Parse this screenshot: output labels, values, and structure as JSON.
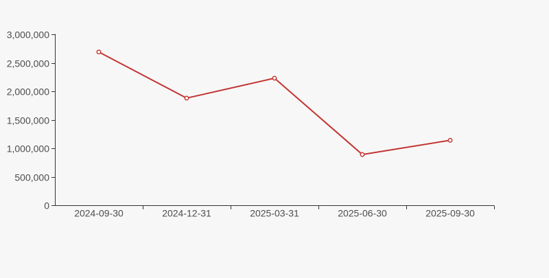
{
  "page": {
    "background_color": "#f7f7f7"
  },
  "chart_data": {
    "type": "line",
    "title": "",
    "xlabel": "",
    "ylabel": "",
    "categories": [
      "2024-09-30",
      "2024-12-31",
      "2025-03-31",
      "2025-06-30",
      "2025-09-30"
    ],
    "series": [
      {
        "name": "series-1",
        "values": [
          2690000,
          1880000,
          2230000,
          890000,
          1140000
        ]
      }
    ],
    "ylim": [
      0,
      3000000
    ],
    "ytick_interval": 500000,
    "ytick_values": [
      0,
      500000,
      1000000,
      1500000,
      2000000,
      2500000,
      3000000
    ],
    "ytick_labels": [
      "0",
      "500,000",
      "1,000,000",
      "1,500,000",
      "2,000,000",
      "2,500,000",
      "3,000,000"
    ],
    "grid": false,
    "legend_position": "none",
    "marker_style": "open-circle",
    "colors": {
      "line": "#c23531",
      "marker_fill": "#ffffff",
      "axis": "#333333",
      "label": "#4d4d4d",
      "background": "#f7f7f7"
    }
  }
}
